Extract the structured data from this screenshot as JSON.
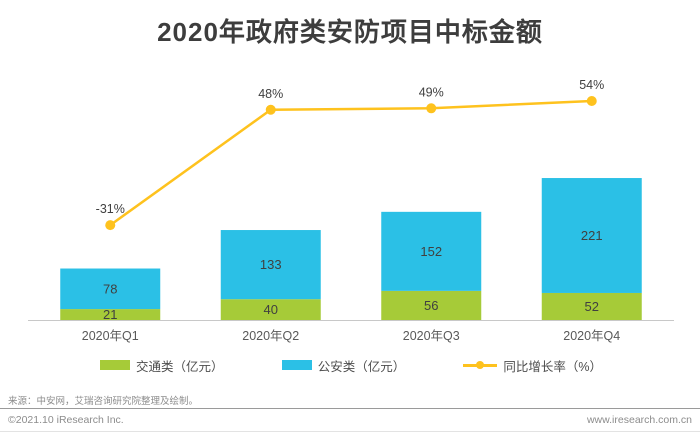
{
  "page": {
    "title": "2020年政府类安防项目中标金额",
    "footer": {
      "source": "来源：中安网，艾瑞咨询研究院整理及绘制。",
      "copyright": "©2021.10 iResearch Inc.",
      "website": "www.iresearch.com.cn"
    }
  },
  "colors": {
    "traffic_green": "#a6cb38",
    "police_blue": "#2bc0e6",
    "growth_yellow": "#fec21e",
    "bar_label_text": "#404040",
    "axis_label_text": "#595959",
    "percent_label_text": "#404040",
    "axis_line": "#c8c8c8"
  },
  "chart_data": {
    "type": "bar",
    "subtype": "stacked-bars-with-line-overlay",
    "title": "2020年政府类安防项目中标金额",
    "categories": [
      "2020年Q1",
      "2020年Q2",
      "2020年Q3",
      "2020年Q4"
    ],
    "series": [
      {
        "name": "交通类",
        "unit": "亿元",
        "values": [
          21,
          40,
          56,
          52
        ]
      },
      {
        "name": "公安类",
        "unit": "亿元",
        "values": [
          78,
          133,
          152,
          221
        ]
      }
    ],
    "line_series": {
      "name": "同比增长率",
      "unit": "%",
      "values": [
        -31,
        48,
        49,
        54
      ],
      "labels": [
        "-31%",
        "48%",
        "49%",
        "54%"
      ]
    },
    "legend": [
      "交通类（亿元）",
      "公安类（亿元）",
      "同比增长率（%）"
    ],
    "legend_position": "bottom",
    "grid": false,
    "y_axis_visible": false,
    "stacked_totals": [
      99,
      173,
      208,
      273
    ]
  }
}
